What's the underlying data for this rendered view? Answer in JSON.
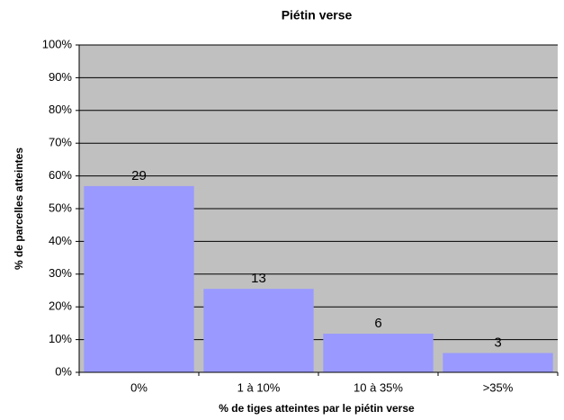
{
  "chart_data": {
    "type": "bar",
    "title": "Piétin verse",
    "x_label": "% de tiges atteintes par le piétin verse",
    "y_label": "% de parcelles atteintes",
    "categories": [
      "0%",
      "1 à 10%",
      "10 à 35%",
      ">35%"
    ],
    "values": [
      56.9,
      25.5,
      11.8,
      5.9
    ],
    "data_labels": [
      29,
      13,
      6,
      3
    ],
    "color": "#9999ff",
    "background": "#c0c0c0",
    "ylim": [
      0,
      100
    ],
    "yticks": [
      {
        "value": 0,
        "label": "0%"
      },
      {
        "value": 10,
        "label": "10%"
      },
      {
        "value": 20,
        "label": "20%"
      },
      {
        "value": 30,
        "label": "30%"
      },
      {
        "value": 40,
        "label": "40%"
      },
      {
        "value": 50,
        "label": "50%"
      },
      {
        "value": 60,
        "label": "60%"
      },
      {
        "value": 70,
        "label": "70%"
      },
      {
        "value": 80,
        "label": "80%"
      },
      {
        "value": 90,
        "label": "90%"
      },
      {
        "value": 100,
        "label": "100%"
      }
    ],
    "grid": true
  }
}
